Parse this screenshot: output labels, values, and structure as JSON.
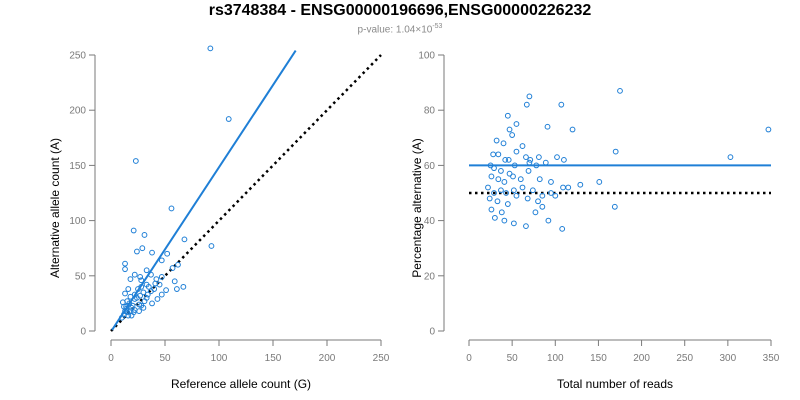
{
  "title": "rs3748384 - ENSG00000196696,ENSG00000226232",
  "subtitle": {
    "prefix": "p-value: 1.04×10",
    "exponent": "-53"
  },
  "colors": {
    "points": "#1f7fd6",
    "fit": "#1f7fd6",
    "reference": "#000000"
  },
  "chart_data": [
    {
      "type": "scatter",
      "xlabel": "Reference allele count (G)",
      "ylabel": "Alternative allele count (A)",
      "xlim": [
        0,
        250
      ],
      "ylim": [
        0,
        250
      ],
      "xticks": [
        0,
        50,
        100,
        150,
        200,
        250
      ],
      "yticks": [
        0,
        50,
        100,
        150,
        200,
        250
      ],
      "fit_line": [
        [
          1,
          1
        ],
        [
          171,
          254
        ]
      ],
      "reference_line": [
        [
          0,
          0
        ],
        [
          250,
          250
        ]
      ],
      "points": [
        [
          92,
          256
        ],
        [
          109,
          192
        ],
        [
          23,
          154
        ],
        [
          56,
          111
        ],
        [
          21,
          91
        ],
        [
          31,
          87
        ],
        [
          93,
          77
        ],
        [
          68,
          83
        ],
        [
          29,
          75
        ],
        [
          24,
          72
        ],
        [
          38,
          71
        ],
        [
          47,
          64
        ],
        [
          57,
          57
        ],
        [
          52,
          70
        ],
        [
          62,
          60
        ],
        [
          13,
          61
        ],
        [
          13,
          56
        ],
        [
          33,
          55
        ],
        [
          22,
          51
        ],
        [
          27,
          49
        ],
        [
          37,
          51
        ],
        [
          42,
          47
        ],
        [
          47,
          49
        ],
        [
          59,
          45
        ],
        [
          61,
          38
        ],
        [
          67,
          40
        ],
        [
          18,
          47
        ],
        [
          28,
          46
        ],
        [
          33,
          42
        ],
        [
          25,
          38
        ],
        [
          30,
          35
        ],
        [
          37,
          36
        ],
        [
          22,
          33
        ],
        [
          18,
          31
        ],
        [
          15,
          27
        ],
        [
          11,
          26
        ],
        [
          14,
          22
        ],
        [
          19,
          21
        ],
        [
          22,
          19
        ],
        [
          15,
          17
        ],
        [
          12,
          15
        ],
        [
          10,
          12
        ],
        [
          19,
          14
        ],
        [
          26,
          18
        ],
        [
          30,
          21
        ],
        [
          38,
          25
        ],
        [
          43,
          29
        ],
        [
          47,
          33
        ],
        [
          51,
          37
        ],
        [
          31,
          27
        ],
        [
          26,
          24
        ],
        [
          22,
          29
        ],
        [
          13,
          34
        ],
        [
          16,
          38
        ],
        [
          12,
          22
        ],
        [
          17,
          25
        ],
        [
          14,
          20
        ],
        [
          24,
          30
        ],
        [
          34,
          33
        ],
        [
          40,
          38
        ],
        [
          45,
          42
        ],
        [
          27,
          32
        ],
        [
          35,
          40
        ],
        [
          28,
          40
        ],
        [
          20,
          23
        ],
        [
          18,
          18
        ],
        [
          16,
          14
        ],
        [
          21,
          17
        ],
        [
          28,
          23
        ],
        [
          33,
          30
        ],
        [
          41,
          43
        ],
        [
          13,
          18
        ]
      ]
    },
    {
      "type": "scatter",
      "xlabel": "Total number of reads",
      "ylabel": "Percentage alternative (A)",
      "xlim": [
        0,
        350
      ],
      "ylim": [
        0,
        100
      ],
      "xticks": [
        0,
        50,
        100,
        150,
        200,
        250,
        300,
        350
      ],
      "yticks": [
        0,
        20,
        40,
        60,
        80,
        100
      ],
      "fit_y": 60,
      "reference_y": 50,
      "line_x": [
        0,
        350
      ],
      "points": [
        [
          175,
          87
        ],
        [
          70,
          85
        ],
        [
          107,
          82
        ],
        [
          67,
          82
        ],
        [
          45,
          78
        ],
        [
          120,
          73
        ],
        [
          91,
          74
        ],
        [
          347,
          73
        ],
        [
          47,
          73
        ],
        [
          50,
          71
        ],
        [
          55,
          75
        ],
        [
          32,
          69
        ],
        [
          40,
          68
        ],
        [
          62,
          67
        ],
        [
          55,
          65
        ],
        [
          28,
          64
        ],
        [
          34,
          64
        ],
        [
          42,
          62
        ],
        [
          46,
          62
        ],
        [
          66,
          63
        ],
        [
          71,
          62
        ],
        [
          81,
          63
        ],
        [
          102,
          63
        ],
        [
          170,
          65
        ],
        [
          303,
          63
        ],
        [
          25,
          60
        ],
        [
          29,
          59
        ],
        [
          37,
          58
        ],
        [
          47,
          57
        ],
        [
          53,
          60
        ],
        [
          70,
          61
        ],
        [
          78,
          60
        ],
        [
          89,
          61
        ],
        [
          110,
          62
        ],
        [
          26,
          56
        ],
        [
          34,
          55
        ],
        [
          41,
          54
        ],
        [
          51,
          56
        ],
        [
          60,
          55
        ],
        [
          69,
          58
        ],
        [
          82,
          55
        ],
        [
          95,
          54
        ],
        [
          109,
          52
        ],
        [
          129,
          53
        ],
        [
          151,
          54
        ],
        [
          22,
          52
        ],
        [
          29,
          50
        ],
        [
          37,
          51
        ],
        [
          43,
          50
        ],
        [
          52,
          51
        ],
        [
          62,
          52
        ],
        [
          74,
          51
        ],
        [
          85,
          49
        ],
        [
          95,
          50
        ],
        [
          115,
          52
        ],
        [
          24,
          48
        ],
        [
          33,
          47
        ],
        [
          45,
          46
        ],
        [
          55,
          49
        ],
        [
          68,
          48
        ],
        [
          80,
          47
        ],
        [
          100,
          49
        ],
        [
          169,
          45
        ],
        [
          30,
          41
        ],
        [
          41,
          40
        ],
        [
          52,
          39
        ],
        [
          66,
          38
        ],
        [
          77,
          43
        ],
        [
          85,
          45
        ],
        [
          92,
          40
        ],
        [
          108,
          37
        ],
        [
          26,
          44
        ],
        [
          38,
          43
        ]
      ]
    }
  ]
}
